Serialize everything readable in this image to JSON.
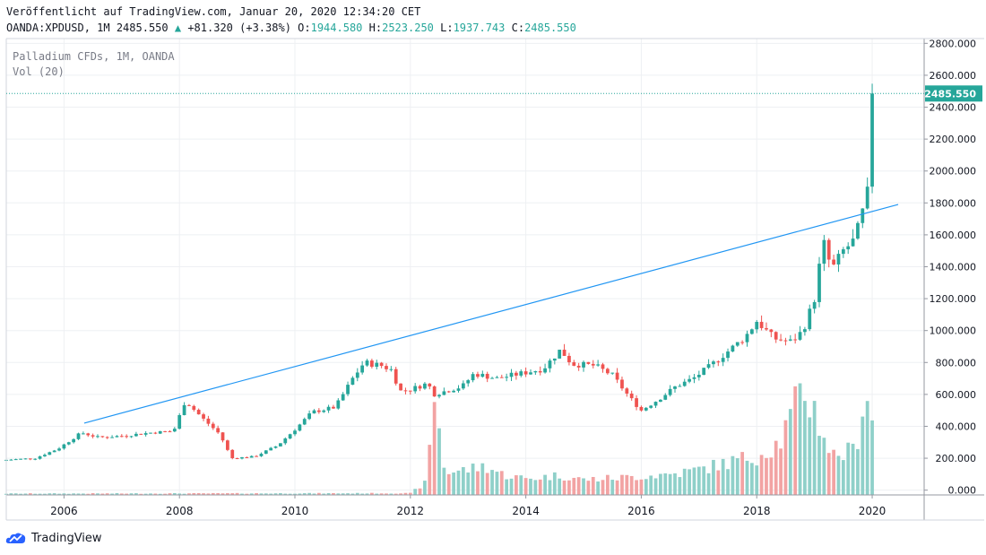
{
  "header": {
    "published": "Veröffentlicht auf TradingView.com, Januar 20, 2020 12:34:20 CET",
    "symbol_line": "OANDA:XPDUSD, 1M 2485.550",
    "change": "+81.320 (+3.38%)",
    "o_label": "O:",
    "o_value": "1944.580",
    "h_label": "H:",
    "h_value": "2523.250",
    "l_label": "L:",
    "l_value": "1937.743",
    "c_label": "C:",
    "c_value": "2485.550"
  },
  "overlay": {
    "series_name": "Palladium CFDs, 1M, OANDA",
    "volume_label": "Vol (20)"
  },
  "brand": {
    "name": "TradingView"
  },
  "colors": {
    "up": "#26a69a",
    "down": "#ef5350",
    "vol_up": "#8fd0c9",
    "vol_down": "#f2a3a3",
    "trendline": "#2196f3",
    "grid": "#eef0f3"
  },
  "chart_data": {
    "type": "candlestick",
    "title": "Palladium CFDs, 1M, OANDA",
    "y_axis": {
      "ticks": [
        "2800.000",
        "2600.000",
        "2400.000",
        "2200.000",
        "2000.000",
        "1800.000",
        "1600.000",
        "1400.000",
        "1200.000",
        "1000.000",
        "800.000",
        "600.000",
        "400.000",
        "200.000",
        "0.000"
      ],
      "range": [
        -30,
        2830
      ],
      "current_price_label": "2485.550",
      "current_price": 2485.55
    },
    "x_axis": {
      "ticks": [
        "2006",
        "2008",
        "2010",
        "2012",
        "2014",
        "2016",
        "2018",
        "2020"
      ],
      "tick_years": [
        2006,
        2008,
        2010,
        2012,
        2014,
        2016,
        2018,
        2020
      ],
      "range": [
        2005.0,
        2020.9
      ]
    },
    "volume_series": {
      "name": "Vol (20)"
    },
    "trendline": {
      "x": [
        2006.35,
        2020.45
      ],
      "y": [
        420,
        1790
      ]
    },
    "anchor_closes": [
      [
        2005.0,
        190
      ],
      [
        2005.5,
        200
      ],
      [
        2005.9,
        260
      ],
      [
        2006.3,
        360
      ],
      [
        2006.6,
        330
      ],
      [
        2007.0,
        340
      ],
      [
        2007.5,
        360
      ],
      [
        2007.9,
        370
      ],
      [
        2008.1,
        560
      ],
      [
        2008.4,
        450
      ],
      [
        2008.7,
        350
      ],
      [
        2008.9,
        200
      ],
      [
        2009.3,
        210
      ],
      [
        2009.7,
        280
      ],
      [
        2010.0,
        380
      ],
      [
        2010.3,
        490
      ],
      [
        2010.7,
        520
      ],
      [
        2011.0,
        700
      ],
      [
        2011.2,
        800
      ],
      [
        2011.5,
        780
      ],
      [
        2011.7,
        750
      ],
      [
        2011.8,
        620
      ],
      [
        2012.0,
        630
      ],
      [
        2012.3,
        670
      ],
      [
        2012.4,
        600
      ],
      [
        2012.9,
        650
      ],
      [
        2013.1,
        730
      ],
      [
        2013.5,
        700
      ],
      [
        2013.9,
        730
      ],
      [
        2014.3,
        760
      ],
      [
        2014.6,
        880
      ],
      [
        2014.8,
        790
      ],
      [
        2015.2,
        780
      ],
      [
        2015.5,
        720
      ],
      [
        2015.8,
        580
      ],
      [
        2016.0,
        500
      ],
      [
        2016.3,
        570
      ],
      [
        2016.6,
        650
      ],
      [
        2016.9,
        700
      ],
      [
        2017.2,
        780
      ],
      [
        2017.5,
        870
      ],
      [
        2017.8,
        960
      ],
      [
        2018.0,
        1060
      ],
      [
        2018.3,
        950
      ],
      [
        2018.6,
        930
      ],
      [
        2018.8,
        1000
      ],
      [
        2019.0,
        1200
      ],
      [
        2019.15,
        1560
      ],
      [
        2019.3,
        1380
      ],
      [
        2019.5,
        1500
      ],
      [
        2019.7,
        1570
      ],
      [
        2019.8,
        1700
      ],
      [
        2019.9,
        1820
      ],
      [
        2019.95,
        1940
      ],
      [
        2020.05,
        2485.55
      ]
    ],
    "anchor_volumes": [
      [
        2005.0,
        8
      ],
      [
        2012.0,
        10
      ],
      [
        2012.3,
        80
      ],
      [
        2012.4,
        640
      ],
      [
        2012.6,
        130
      ],
      [
        2013.0,
        150
      ],
      [
        2013.3,
        170
      ],
      [
        2013.6,
        120
      ],
      [
        2014.0,
        95
      ],
      [
        2014.6,
        115
      ],
      [
        2015.0,
        90
      ],
      [
        2015.6,
        100
      ],
      [
        2016.0,
        110
      ],
      [
        2016.6,
        125
      ],
      [
        2017.0,
        150
      ],
      [
        2017.5,
        190
      ],
      [
        2018.0,
        230
      ],
      [
        2018.4,
        310
      ],
      [
        2018.8,
        620
      ],
      [
        2019.0,
        500
      ],
      [
        2019.3,
        230
      ],
      [
        2019.7,
        260
      ],
      [
        2019.9,
        640
      ],
      [
        2020.0,
        440
      ]
    ]
  }
}
